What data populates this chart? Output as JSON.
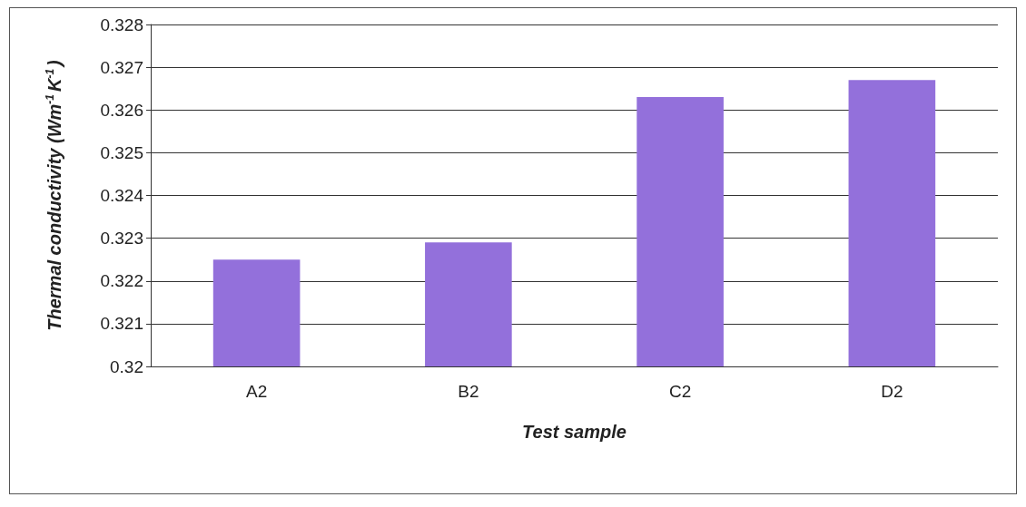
{
  "chart_data": {
    "type": "bar",
    "xlabel": "Test sample",
    "ylabel": "Thermal conductivity (Wm$^{-1}$K$^{-1}$)",
    "categories": [
      "A2",
      "B2",
      "C2",
      "D2"
    ],
    "values": [
      0.3225,
      0.3229,
      0.3263,
      0.3267
    ],
    "color": "#9370db",
    "ylim": [
      0.32,
      0.328
    ],
    "yticks": [
      0.32,
      0.321,
      0.322,
      0.323,
      0.324,
      0.325,
      0.326,
      0.327,
      0.328
    ],
    "grid": "y"
  }
}
